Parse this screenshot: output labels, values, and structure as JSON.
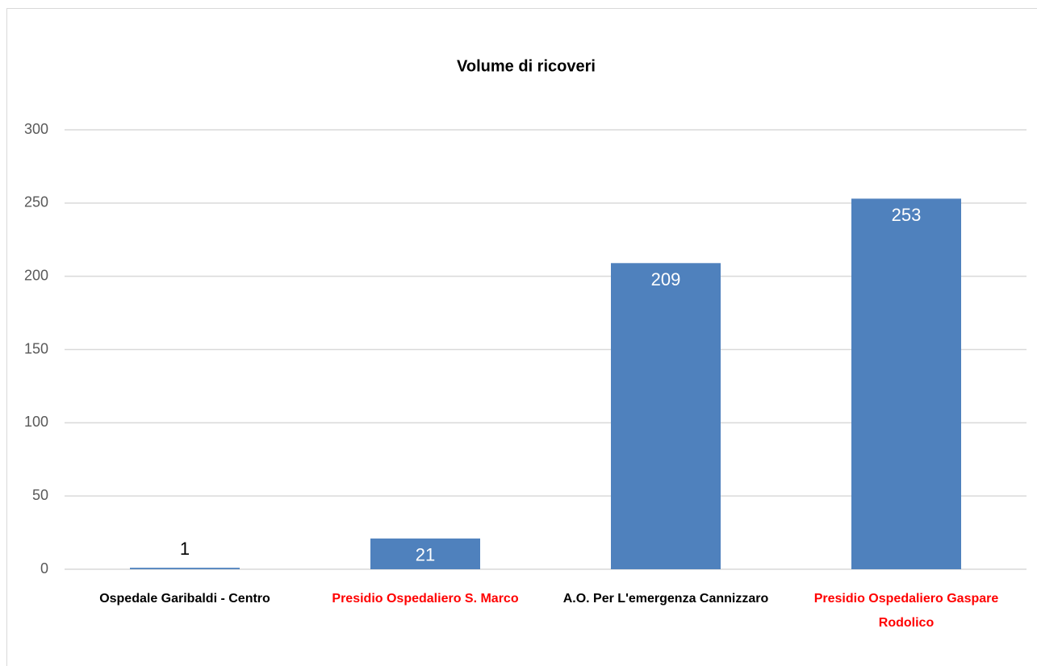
{
  "chart_data": {
    "type": "bar",
    "title": "Volume di ricoveri",
    "categories": [
      "Ospedale Garibaldi - Centro",
      "Presidio Ospedaliero S. Marco",
      "A.O. Per L'emergenza Cannizzaro",
      "Presidio Ospedaliero Gaspare Rodolico"
    ],
    "category_colors": [
      "#000000",
      "#ff0000",
      "#000000",
      "#ff0000"
    ],
    "values": [
      1,
      21,
      209,
      253
    ],
    "color": "#4f81bd",
    "ylim": [
      0,
      300
    ],
    "yticks": [
      0,
      50,
      100,
      150,
      200,
      250,
      300
    ],
    "grid": true
  }
}
